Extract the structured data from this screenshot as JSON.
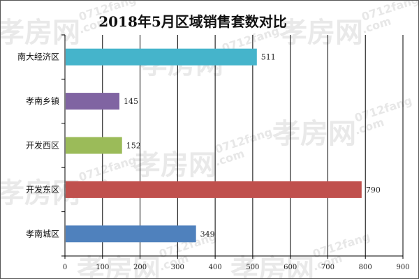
{
  "watermark": {
    "logo_text": "孝房网",
    "site_text": "0712fang",
    "dot_com": ".com"
  },
  "chart_data": {
    "type": "bar",
    "orientation": "horizontal",
    "title": "2018年5月区域销售套数对比",
    "categories": [
      "南大经济区",
      "孝南乡镇",
      "开发西区",
      "开发东区",
      "孝南城区"
    ],
    "values": [
      511,
      145,
      152,
      790,
      349
    ],
    "colors": [
      "#45b4cb",
      "#8064a2",
      "#9bbb59",
      "#c0504d",
      "#4f81bd"
    ],
    "xlim": [
      0,
      900
    ],
    "xticks": [
      0,
      100,
      200,
      300,
      400,
      500,
      600,
      700,
      800,
      900
    ],
    "grid": true,
    "xlabel": "",
    "ylabel": ""
  }
}
